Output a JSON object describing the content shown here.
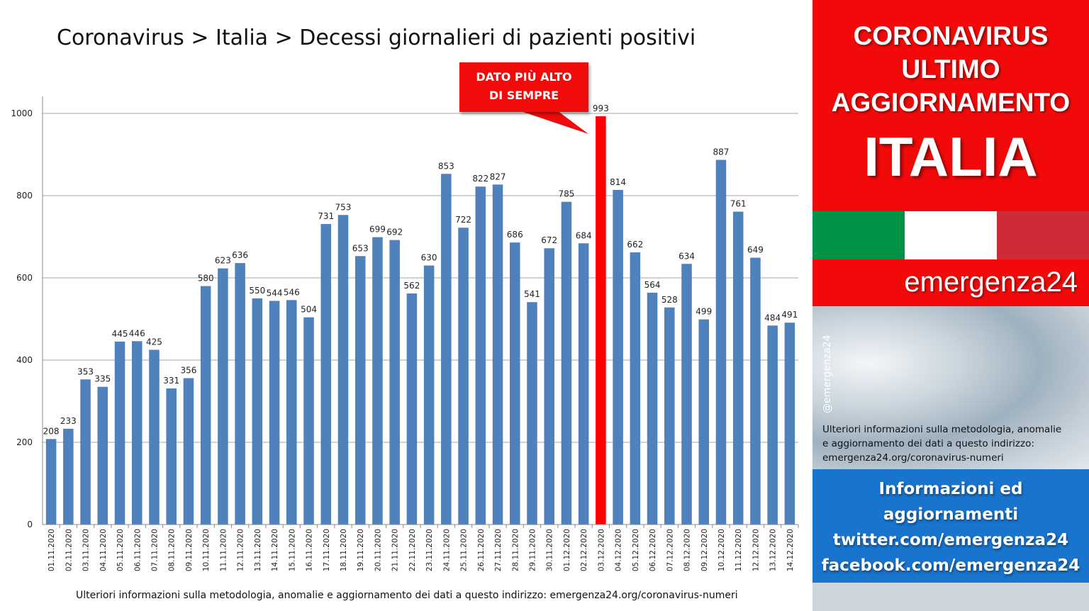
{
  "title": "Coronavirus > Italia > Decessi giornalieri di pazienti positivi",
  "callout": {
    "line1": "DATO PIÙ ALTO",
    "line2": "DI SEMPRE"
  },
  "footer_note": "Ulteriori informazioni sulla metodologia, anomalie e aggiornamento dei dati a questo indirizzo: emergenza24.org/coronavirus-numeri",
  "panel": {
    "header_line1": "CORONAVIRUS",
    "header_line2": "ULTIMO",
    "header_line3": "AGGIORNAMENTO",
    "header_country": "ITALIA",
    "brand": "emergenza24",
    "handle": "@emergenza24",
    "note_line1": "Ulteriori informazioni sulla metodologia, anomalie",
    "note_line2": "e aggiornamento dei dati a questo indirizzo:",
    "note_line3": "emergenza24.org/coronavirus-numeri",
    "info_line1": "Informazioni ed",
    "info_line2": "aggiornamenti",
    "info_line3": "twitter.com/emergenza24",
    "info_line4": "facebook.com/emergenza24"
  },
  "colors": {
    "bar": "#4f81bd",
    "highlight_bar": "#ff0000",
    "panel_red": "#f20a0a",
    "info_blue": "#1874cd",
    "flag_green": "#009246",
    "flag_white": "#ffffff",
    "flag_red": "#ce2b37"
  },
  "chart_data": {
    "type": "bar",
    "title": "Coronavirus > Italia > Decessi giornalieri di pazienti positivi",
    "xlabel": "",
    "ylabel": "",
    "ylim": [
      0,
      1000
    ],
    "yticks": [
      0,
      200,
      400,
      600,
      800,
      1000
    ],
    "grid": true,
    "highlight_category": "03.12.2020",
    "categories": [
      "01.11.2020",
      "02.11.2020",
      "03.11.2020",
      "04.11.2020",
      "05.11.2020",
      "06.11.2020",
      "07.11.2020",
      "08.11.2020",
      "09.11.2020",
      "10.11.2020",
      "11.11.2020",
      "12.11.2020",
      "13.11.2020",
      "14.11.2020",
      "15.11.2020",
      "16.11.2020",
      "17.11.2020",
      "18.11.2020",
      "19.11.2020",
      "20.11.2020",
      "21.11.2020",
      "22.11.2020",
      "23.11.2020",
      "24.11.2020",
      "25.11.2020",
      "26.11.2020",
      "27.11.2020",
      "28.11.2020",
      "29.11.2020",
      "30.11.2020",
      "01.12.2020",
      "02.12.2020",
      "03.12.2020",
      "04.12.2020",
      "05.12.2020",
      "06.12.2020",
      "07.12.2020",
      "08.12.2020",
      "09.12.2020",
      "10.12.2020",
      "11.12.2020",
      "12.12.2020",
      "13.12.2020",
      "14.12.2020"
    ],
    "values": [
      208,
      233,
      353,
      335,
      445,
      446,
      425,
      331,
      356,
      580,
      623,
      636,
      550,
      544,
      546,
      504,
      731,
      753,
      653,
      699,
      692,
      562,
      630,
      853,
      722,
      822,
      827,
      686,
      541,
      672,
      785,
      684,
      993,
      814,
      662,
      564,
      528,
      634,
      499,
      887,
      761,
      649,
      484,
      491
    ]
  }
}
